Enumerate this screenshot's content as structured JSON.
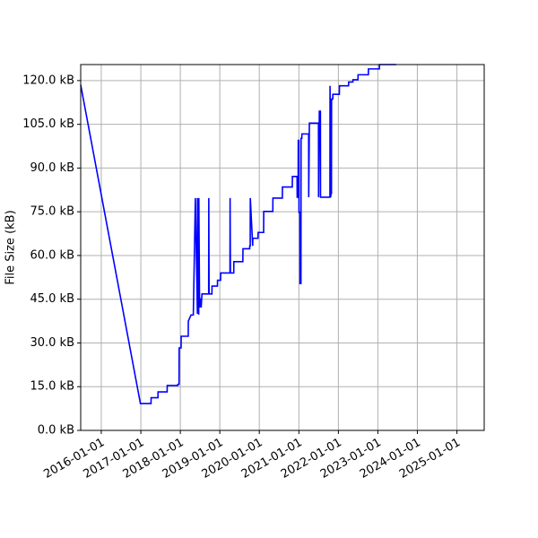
{
  "chart_data": {
    "type": "line",
    "title": "",
    "xlabel": "",
    "ylabel": "File Size (kB)",
    "grid": true,
    "line_color": "#0000ff",
    "xlim": [
      "2015-06-25",
      "2025-09-10"
    ],
    "ylim": [
      0,
      125.5
    ],
    "x_ticks": [
      "2016-01-01",
      "2017-01-01",
      "2018-01-01",
      "2019-01-01",
      "2020-01-01",
      "2021-01-01",
      "2022-01-01",
      "2023-01-01",
      "2024-01-01",
      "2025-01-01"
    ],
    "y_ticks": [
      0,
      15,
      30,
      45,
      60,
      75,
      90,
      105,
      120
    ],
    "y_tick_labels": [
      "0.0 kB",
      "15.0 kB",
      "30.0 kB",
      "45.0 kB",
      "60.0 kB",
      "75.0 kB",
      "90.0 kB",
      "105.0 kB",
      "120.0 kB"
    ],
    "series": [
      {
        "x": [
          "2015-06-25",
          "2016-12-28",
          "2017-04-05",
          "2017-04-06",
          "2017-06-08",
          "2017-06-09",
          "2017-09-01",
          "2017-09-02",
          "2017-12-08",
          "2017-12-09",
          "2017-12-20",
          "2017-12-21",
          "2018-01-08",
          "2018-01-09",
          "2018-03-15",
          "2018-03-16",
          "2018-04-10",
          "2018-05-01",
          "2018-05-20",
          "2018-06-08",
          "2018-06-09",
          "2018-06-13",
          "2018-06-14",
          "2018-06-20",
          "2018-06-21",
          "2018-06-28",
          "2018-06-29",
          "2018-07-05",
          "2018-07-06",
          "2018-07-12",
          "2018-07-13",
          "2018-07-20",
          "2018-07-21",
          "2018-08-01",
          "2018-08-02",
          "2018-09-20",
          "2018-09-21",
          "2018-09-24",
          "2018-09-25",
          "2018-10-20",
          "2018-10-21",
          "2018-12-10",
          "2018-12-11",
          "2019-01-08",
          "2019-01-09",
          "2019-04-05",
          "2019-04-06",
          "2019-04-09",
          "2019-04-10",
          "2019-05-10",
          "2019-05-11",
          "2019-08-02",
          "2019-08-03",
          "2019-10-04",
          "2019-10-05",
          "2019-10-09",
          "2019-10-10",
          "2019-11-01",
          "2019-11-02",
          "2019-12-20",
          "2019-12-21",
          "2020-02-10",
          "2020-02-11",
          "2020-05-05",
          "2020-05-06",
          "2020-08-01",
          "2020-08-02",
          "2020-11-01",
          "2020-11-02",
          "2020-12-15",
          "2020-12-16",
          "2020-12-25",
          "2020-12-26",
          "2021-01-01",
          "2021-01-02",
          "2021-01-10",
          "2021-01-11",
          "2021-01-20",
          "2021-01-21",
          "2021-01-28",
          "2021-01-29",
          "2021-04-01",
          "2021-04-02",
          "2021-04-07",
          "2021-04-08",
          "2021-07-01",
          "2021-07-02",
          "2021-07-08",
          "2021-07-09",
          "2021-07-19",
          "2021-07-20",
          "2021-07-28",
          "2021-07-29",
          "2021-10-15",
          "2021-10-16",
          "2021-10-23",
          "2021-10-24",
          "2021-10-29",
          "2021-10-30",
          "2021-11-02",
          "2021-11-03",
          "2021-11-10",
          "2021-11-11",
          "2022-01-10",
          "2022-01-11",
          "2022-04-05",
          "2022-04-06",
          "2022-05-15",
          "2022-05-16",
          "2022-07-01",
          "2022-07-02",
          "2022-10-05",
          "2022-10-06",
          "2023-01-15",
          "2023-01-16",
          "2023-06-20"
        ],
        "y": [
          118.5,
          9.2,
          9.2,
          11.2,
          11.2,
          13.2,
          13.2,
          15.4,
          15.4,
          15.8,
          15.8,
          28.3,
          28.3,
          32.3,
          32.3,
          37.5,
          39.6,
          39.6,
          79.7,
          40.0,
          79.7,
          40.0,
          79.7,
          39.7,
          79.7,
          42.4,
          42.4,
          45.1,
          45.1,
          42.4,
          42.4,
          46.8,
          46.8,
          46.8,
          46.8,
          46.8,
          79.7,
          46.8,
          46.8,
          46.8,
          49.5,
          49.5,
          51.5,
          51.5,
          54.0,
          54.0,
          79.7,
          54.0,
          54.0,
          54.0,
          57.9,
          57.9,
          62.3,
          62.3,
          63.3,
          63.3,
          79.7,
          63.3,
          65.9,
          65.9,
          67.9,
          67.9,
          75.1,
          75.1,
          79.7,
          79.7,
          83.5,
          83.5,
          87.1,
          87.1,
          80.0,
          80.0,
          99.5,
          99.5,
          74.8,
          74.8,
          50.4,
          50.4,
          100.2,
          100.2,
          101.7,
          101.7,
          80.0,
          101.7,
          105.4,
          105.4,
          80.0,
          105.4,
          109.5,
          109.5,
          80.0,
          80.0,
          80.0,
          80.0,
          118.2,
          80.0,
          113.5,
          81.0,
          113.5,
          113.5,
          113.7,
          113.7,
          115.3,
          115.3,
          118.2,
          118.2,
          119.5,
          119.5,
          120.3,
          120.3,
          122.0,
          122.0,
          124.0,
          124.0,
          125.5,
          125.5
        ]
      }
    ]
  }
}
